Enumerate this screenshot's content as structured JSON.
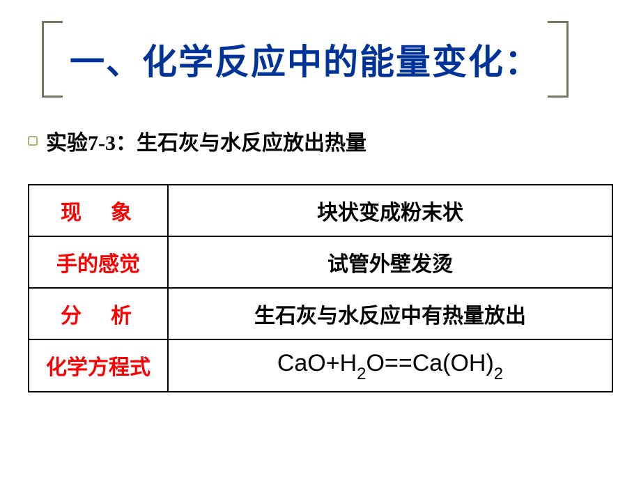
{
  "title": {
    "text": "一、化学反应中的能量变化：",
    "color": "#003399",
    "fontsize": 50,
    "bracket_color": "#777766"
  },
  "subtitle": {
    "prefix": "实验7-3：",
    "text": "生石灰与水反应放出热量",
    "fontsize": 30,
    "color": "#000000",
    "bullet_color": "#b0b070"
  },
  "table": {
    "border_color": "#000000",
    "label_color": "#ff0000",
    "value_color": "#000000",
    "rows": [
      {
        "label": "现　象",
        "value": "块状变成粉末状"
      },
      {
        "label": "手的感觉",
        "value": "试管外壁发烫"
      },
      {
        "label": "分　析",
        "value": "生石灰与水反应中有热量放出"
      },
      {
        "label": "化学方程式",
        "value_formula": {
          "parts": [
            "CaO+H",
            "2",
            "O==Ca(OH)",
            "2"
          ]
        }
      }
    ]
  }
}
